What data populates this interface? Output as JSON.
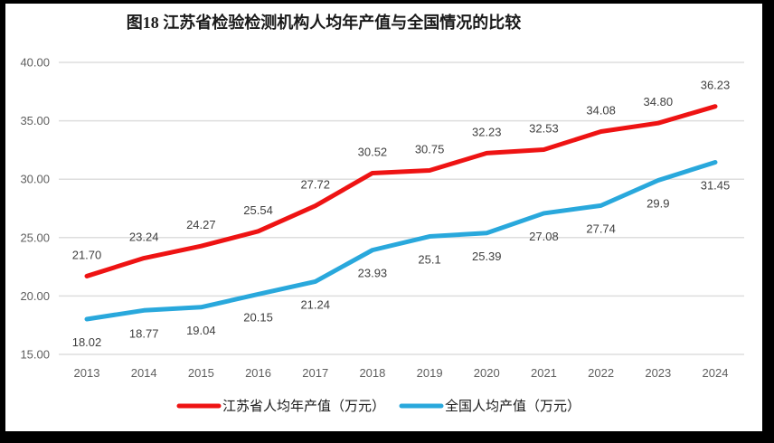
{
  "chart_data": {
    "type": "line",
    "title": "图18  江苏省检验检测机构人均年产值与全国情况的比较",
    "categories": [
      "2013",
      "2014",
      "2015",
      "2016",
      "2017",
      "2018",
      "2019",
      "2020",
      "2021",
      "2022",
      "2023",
      "2024"
    ],
    "series": [
      {
        "name": "江苏省人均年产值（万元）",
        "color": "#ee1313",
        "values": [
          21.7,
          23.24,
          24.27,
          25.54,
          27.72,
          30.52,
          30.75,
          32.23,
          32.53,
          34.08,
          34.8,
          36.23
        ],
        "labels": [
          "21.70",
          "23.24",
          "24.27",
          "25.54",
          "27.72",
          "30.52",
          "30.75",
          "32.23",
          "32.53",
          "34.08",
          "34.80",
          "36.23"
        ],
        "label_position": "above"
      },
      {
        "name": "全国人均产值（万元）",
        "color": "#29a8dc",
        "values": [
          18.02,
          18.77,
          19.04,
          20.15,
          21.24,
          23.93,
          25.1,
          25.39,
          27.08,
          27.74,
          29.9,
          31.45
        ],
        "labels": [
          "18.02",
          "18.77",
          "19.04",
          "20.15",
          "21.24",
          "23.93",
          "25.1",
          "25.39",
          "27.08",
          "27.74",
          "29.9",
          "31.45"
        ],
        "label_position": "below"
      }
    ],
    "ylim": [
      15,
      40
    ],
    "ytick_step": 5,
    "ytick_labels": [
      "15.00",
      "20.00",
      "25.00",
      "30.00",
      "35.00",
      "40.00"
    ],
    "grid": "horizontal",
    "gridline_color": "#dedede",
    "legend_position": "bottom"
  }
}
